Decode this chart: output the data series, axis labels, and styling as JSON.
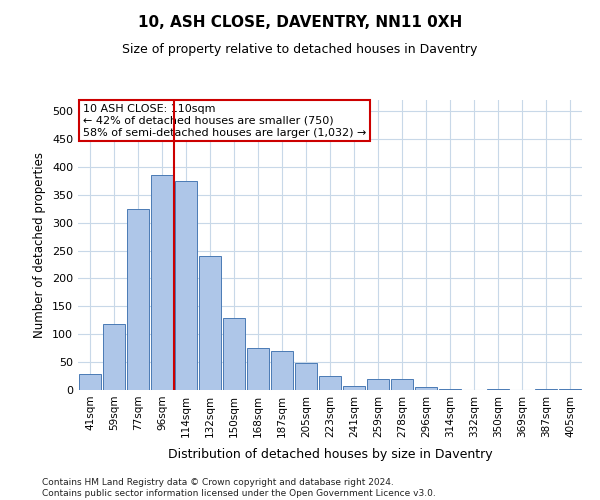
{
  "title": "10, ASH CLOSE, DAVENTRY, NN11 0XH",
  "subtitle": "Size of property relative to detached houses in Daventry",
  "xlabel": "Distribution of detached houses by size in Daventry",
  "ylabel": "Number of detached properties",
  "categories": [
    "41sqm",
    "59sqm",
    "77sqm",
    "96sqm",
    "114sqm",
    "132sqm",
    "150sqm",
    "168sqm",
    "187sqm",
    "205sqm",
    "223sqm",
    "241sqm",
    "259sqm",
    "278sqm",
    "296sqm",
    "314sqm",
    "332sqm",
    "350sqm",
    "369sqm",
    "387sqm",
    "405sqm"
  ],
  "values": [
    28,
    118,
    325,
    385,
    375,
    240,
    130,
    75,
    70,
    48,
    25,
    8,
    20,
    20,
    5,
    2,
    0,
    2,
    0,
    2,
    2
  ],
  "bar_color": "#aec6e8",
  "bar_edge_color": "#4a7ab5",
  "vline_x_index": 3.5,
  "vline_color": "#cc0000",
  "annotation_text": "10 ASH CLOSE: 110sqm\n← 42% of detached houses are smaller (750)\n58% of semi-detached houses are larger (1,032) →",
  "annotation_box_color": "#ffffff",
  "annotation_box_edge_color": "#cc0000",
  "ylim": [
    0,
    520
  ],
  "yticks": [
    0,
    50,
    100,
    150,
    200,
    250,
    300,
    350,
    400,
    450,
    500
  ],
  "footer": "Contains HM Land Registry data © Crown copyright and database right 2024.\nContains public sector information licensed under the Open Government Licence v3.0.",
  "bg_color": "#ffffff",
  "grid_color": "#c8d8e8"
}
